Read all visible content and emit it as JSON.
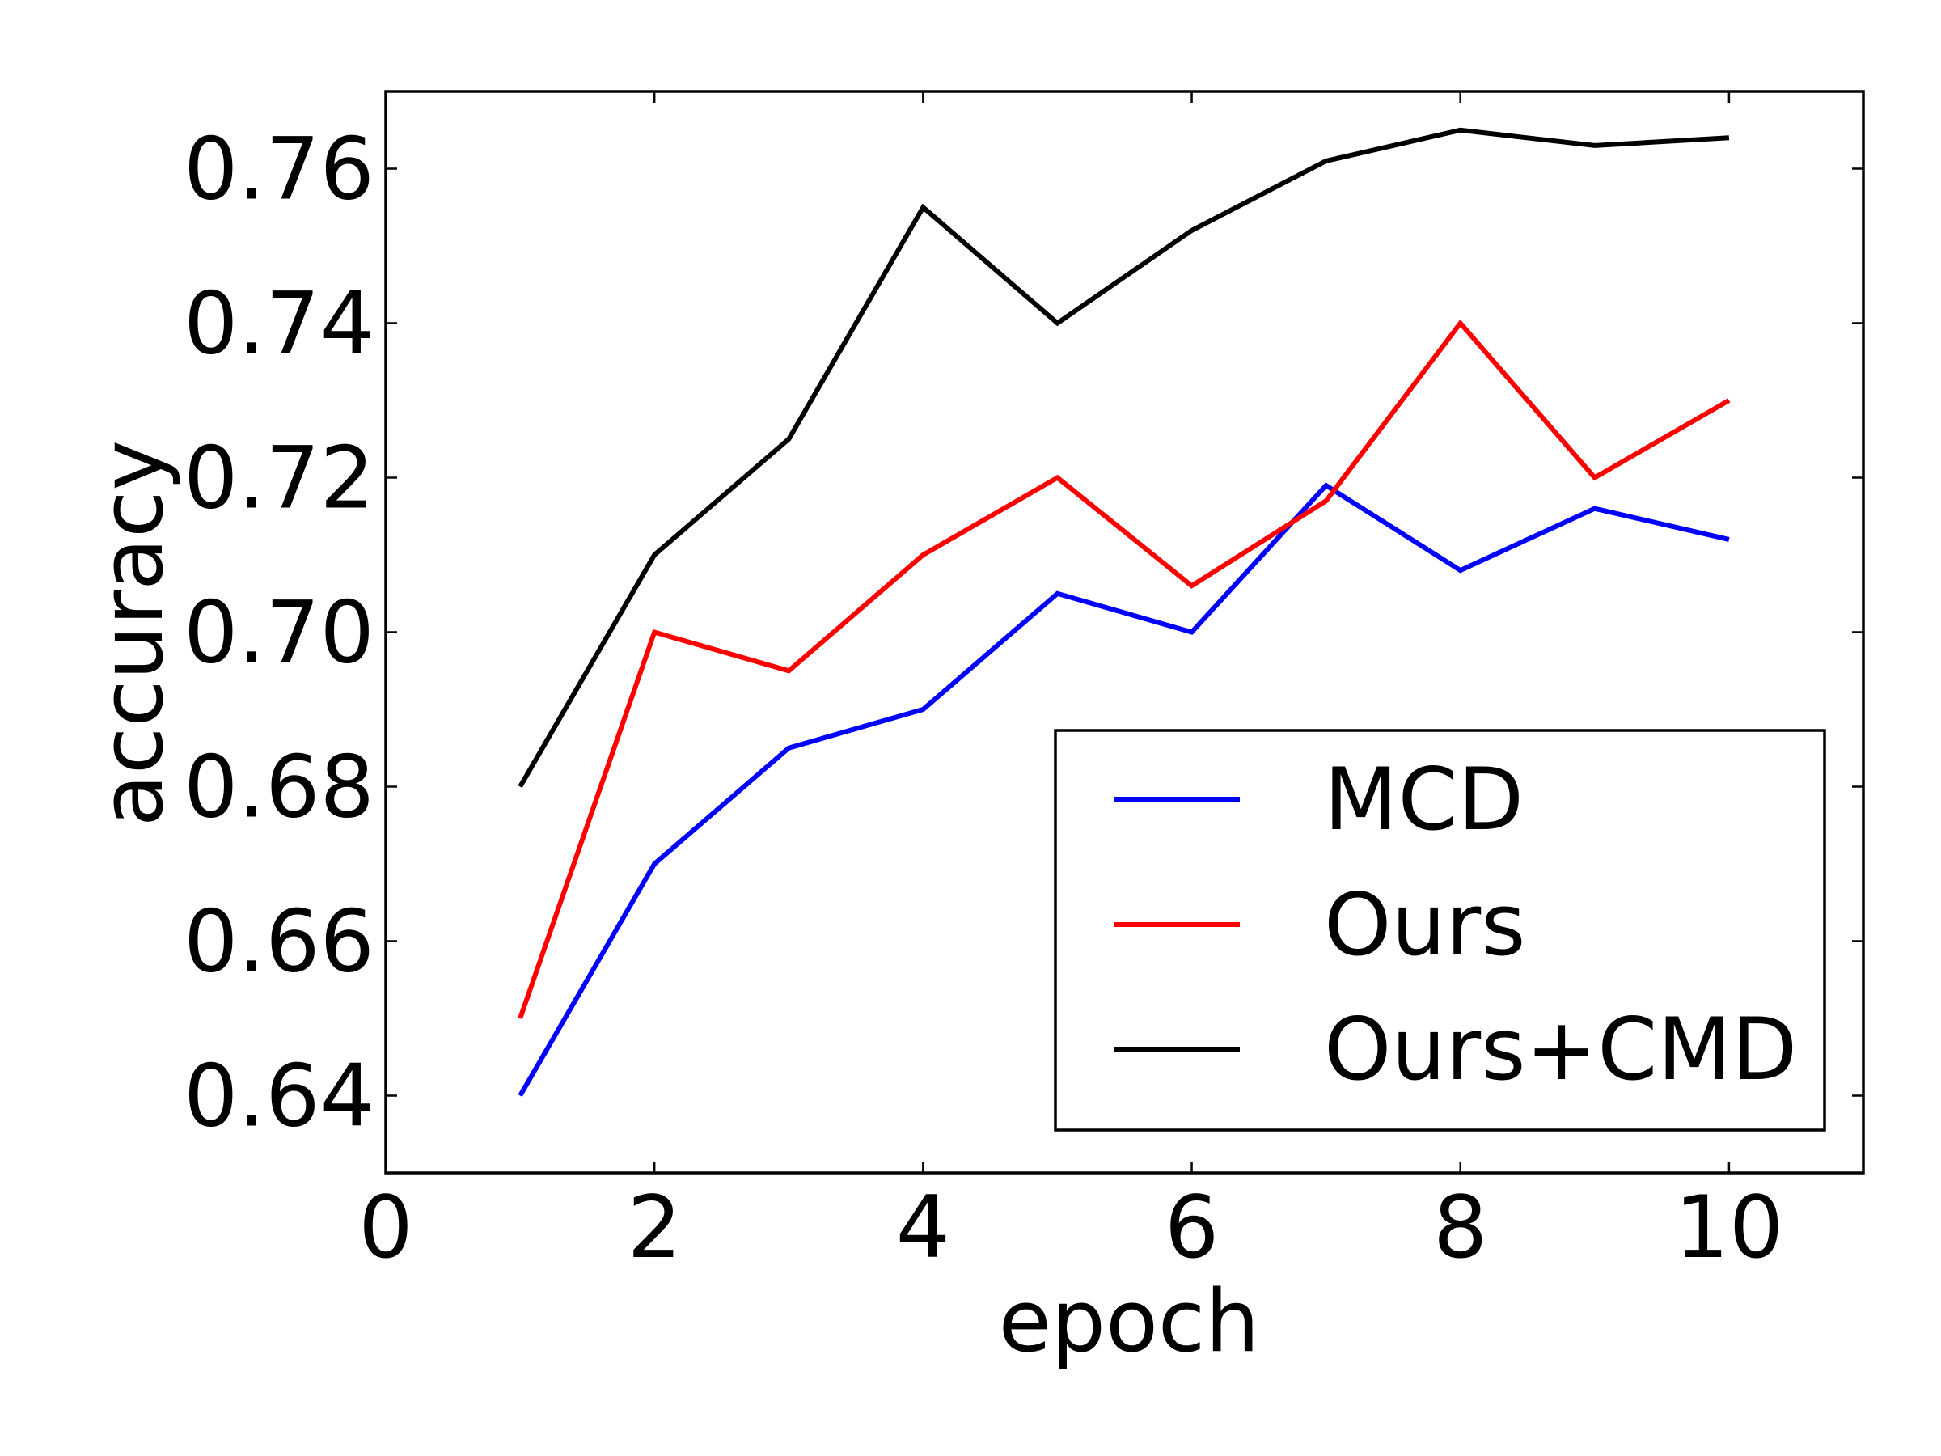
{
  "chart_data": {
    "type": "line",
    "title": "",
    "xlabel": "epoch",
    "ylabel": "accuracy",
    "xlim": [
      0,
      11
    ],
    "ylim": [
      0.63,
      0.77
    ],
    "xticks": [
      0,
      2,
      4,
      6,
      8,
      10
    ],
    "xtick_labels": [
      "0",
      "2",
      "4",
      "6",
      "8",
      "10"
    ],
    "yticks": [
      0.64,
      0.66,
      0.68,
      0.7,
      0.72,
      0.74,
      0.76
    ],
    "ytick_labels": [
      "0.64",
      "0.66",
      "0.68",
      "0.70",
      "0.72",
      "0.74",
      "0.76"
    ],
    "grid": false,
    "legend_position": "lower-right",
    "x": [
      1,
      2,
      3,
      4,
      5,
      6,
      7,
      8,
      9,
      10
    ],
    "series": [
      {
        "name": "MCD",
        "color": "#0000ff",
        "values": [
          0.64,
          0.67,
          0.685,
          0.69,
          0.705,
          0.7,
          0.719,
          0.708,
          0.716,
          0.712
        ]
      },
      {
        "name": "Ours",
        "color": "#ff0000",
        "values": [
          0.65,
          0.7,
          0.695,
          0.71,
          0.72,
          0.706,
          0.717,
          0.74,
          0.72,
          0.73
        ]
      },
      {
        "name": "Ours+CMD",
        "color": "#000000",
        "values": [
          0.68,
          0.71,
          0.725,
          0.755,
          0.74,
          0.752,
          0.761,
          0.765,
          0.763,
          0.764
        ]
      }
    ]
  }
}
